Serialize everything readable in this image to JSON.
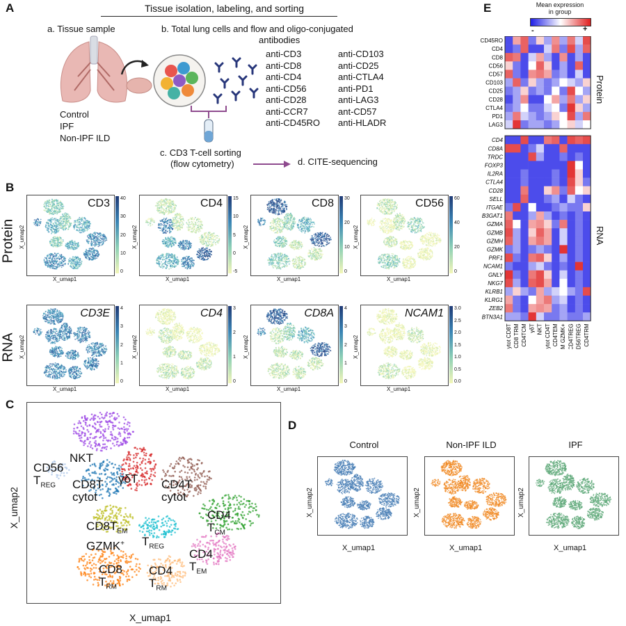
{
  "panel_a": {
    "letter": "A",
    "title": "Tissue isolation, labeling, and sorting",
    "step_a": "a. Tissue sample",
    "step_b_line1": "b.   Total lung cells and flow and oligo-conjugated",
    "step_b_line2": "antibodies",
    "groups": [
      "Control",
      "IPF",
      "Non-IPF ILD"
    ],
    "antibodies_left": [
      "anti-CD3",
      "anti-CD8",
      "anti-CD4",
      "anti-CD56",
      "anti-CD28",
      "anti-CCR7",
      "anti-CD45RO"
    ],
    "antibodies_right": [
      "anti-CD103",
      "anti-CD25",
      "anti-CTLA4",
      "anti-PD1",
      "anti-LAG3",
      "ant-CD57",
      "anti-HLADR"
    ],
    "step_c_line1": "c. CD3 T-cell sorting",
    "step_c_line2": "(flow cytometry)",
    "step_d": "d. CITE-sequencing"
  },
  "panel_b": {
    "letter": "B",
    "row_labels": [
      "Protein",
      "RNA"
    ],
    "x_label": "X_umap1",
    "y_label": "X_umap2",
    "protein": [
      {
        "marker": "CD3",
        "ticks": [
          "40",
          "30",
          "20",
          "10",
          "0"
        ]
      },
      {
        "marker": "CD4",
        "ticks": [
          "15",
          "10",
          "5",
          "0",
          "-5"
        ]
      },
      {
        "marker": "CD8",
        "ticks": [
          "30",
          "20",
          "10",
          "0"
        ]
      },
      {
        "marker": "CD56",
        "ticks": [
          "60",
          "40",
          "20",
          "0"
        ]
      }
    ],
    "rna": [
      {
        "marker": "CD3E",
        "ticks": [
          "4",
          "3",
          "2",
          "1",
          "0"
        ]
      },
      {
        "marker": "CD4",
        "ticks": [
          "3",
          "2",
          "1",
          "0"
        ]
      },
      {
        "marker": "CD8A",
        "ticks": [
          "4",
          "3",
          "2",
          "1",
          "0"
        ]
      },
      {
        "marker": "NCAM1",
        "ticks": [
          "3.0",
          "2.5",
          "2.0",
          "1.5",
          "1.0",
          "0.5",
          "0.0"
        ]
      }
    ]
  },
  "panel_c": {
    "letter": "C",
    "x_label": "X_umap1",
    "y_label": "X_umap2",
    "clusters": [
      {
        "l1": "NKT",
        "l2": "",
        "color": "#9b45e4"
      },
      {
        "l1": "CD56",
        "l2": "TREG",
        "color": "#aec7e8"
      },
      {
        "l1": "CD8T",
        "l2": "cytot",
        "color": "#1f77b4"
      },
      {
        "l1": "γδT",
        "l2": "",
        "color": "#d62728"
      },
      {
        "l1": "CD4T",
        "l2": "cytot",
        "color": "#8c564b"
      },
      {
        "l1": "CD8TEM",
        "l2": "GZMK+",
        "color": "#bcbd22"
      },
      {
        "l1": "TREG",
        "l2": "",
        "color": "#17becf"
      },
      {
        "l1": "CD4",
        "l2": "TCM",
        "color": "#2ca02c"
      },
      {
        "l1": "CD4",
        "l2": "TEM",
        "color": "#e377c2"
      },
      {
        "l1": "CD8",
        "l2": "TRM",
        "color": "#ff7f0e"
      },
      {
        "l1": "CD4",
        "l2": "TRM",
        "color": "#ffbb78"
      }
    ]
  },
  "panel_d": {
    "letter": "D",
    "x_label": "X_umap1",
    "y_label": "X_umap2",
    "groups": [
      {
        "name": "Control",
        "color": "#4a7fb5"
      },
      {
        "name": "Non-IPF ILD",
        "color": "#f08a24"
      },
      {
        "name": "IPF",
        "color": "#5ea878"
      }
    ]
  },
  "panel_e": {
    "letter": "E",
    "legend_title_line1": "Mean expression",
    "legend_title_line2": "in group",
    "legend_min": "-",
    "legend_max": "+",
    "section_protein": "Protein",
    "section_rna": "RNA",
    "protein_rows": [
      "CD45RO",
      "CD4",
      "CD8",
      "CD56",
      "CD57",
      "CD103",
      "CD25",
      "CD28",
      "CTLA4",
      "PD1",
      "LAG3"
    ],
    "rna_rows": [
      "CD4",
      "CD8A",
      "TRDC",
      "FOXP3",
      "IL2RA",
      "CTLA4",
      "CD28",
      "SELL",
      "ITGAE",
      "B3GAT1",
      "GZMA",
      "GZMB",
      "GZMH",
      "GZMK",
      "PRF1",
      "NCAM1",
      "GNLY",
      "NKG7",
      "KLRB1",
      "KLRG1",
      "ZEB2",
      "BTN3A1"
    ],
    "columns": [
      "Cytot CD8T",
      "CD8 TRM",
      "CD4TCM",
      "γδT",
      "NKT",
      "Cytot CD4T",
      "CD4TEM",
      "CD8 TEM GZMK+",
      "CD4TREG",
      "CD56TREG",
      "CD4TRM"
    ],
    "protein_values": [
      [
        0.1,
        0.7,
        0.85,
        0.2,
        0.6,
        0.3,
        0.75,
        0.3,
        0.8,
        0.4,
        0.9
      ],
      [
        0.1,
        0.2,
        0.85,
        0.1,
        0.1,
        0.4,
        0.8,
        0.2,
        0.9,
        0.3,
        0.85
      ],
      [
        0.85,
        0.8,
        0.1,
        0.4,
        0.7,
        0.3,
        0.1,
        0.75,
        0.1,
        0.3,
        0.1
      ],
      [
        0.6,
        0.2,
        0.1,
        0.5,
        0.85,
        0.6,
        0.1,
        0.3,
        0.1,
        0.85,
        0.1
      ],
      [
        0.85,
        0.2,
        0.1,
        0.75,
        0.8,
        0.7,
        0.2,
        0.3,
        0.1,
        0.4,
        0.1
      ],
      [
        0.3,
        0.85,
        0.2,
        0.6,
        0.3,
        0.2,
        0.3,
        0.5,
        0.4,
        0.3,
        0.6
      ],
      [
        0.2,
        0.3,
        0.6,
        0.2,
        0.3,
        0.2,
        0.5,
        0.2,
        0.9,
        0.5,
        0.3
      ],
      [
        0.1,
        0.3,
        0.75,
        0.1,
        0.1,
        0.5,
        0.7,
        0.3,
        0.8,
        0.3,
        0.6
      ],
      [
        0.2,
        0.3,
        0.5,
        0.2,
        0.2,
        0.4,
        0.5,
        0.2,
        0.95,
        0.6,
        0.3
      ],
      [
        0.3,
        0.8,
        0.4,
        0.3,
        0.2,
        0.3,
        0.6,
        0.5,
        0.9,
        0.3,
        0.8
      ],
      [
        0.4,
        0.95,
        0.2,
        0.3,
        0.3,
        0.2,
        0.3,
        0.5,
        0.6,
        0.4,
        0.5
      ]
    ],
    "rna_values": [
      [
        0.1,
        0.1,
        0.9,
        0.1,
        0.1,
        0.8,
        0.85,
        0.1,
        0.9,
        0.85,
        0.9
      ],
      [
        0.9,
        0.9,
        0.1,
        0.2,
        0.4,
        0.1,
        0.1,
        0.85,
        0.1,
        0.1,
        0.1
      ],
      [
        0.1,
        0.1,
        0.1,
        0.9,
        0.3,
        0.1,
        0.1,
        0.2,
        0.1,
        0.2,
        0.1
      ],
      [
        0.1,
        0.1,
        0.1,
        0.1,
        0.1,
        0.1,
        0.1,
        0.1,
        0.95,
        0.5,
        0.1
      ],
      [
        0.1,
        0.1,
        0.2,
        0.1,
        0.1,
        0.1,
        0.2,
        0.1,
        0.95,
        0.6,
        0.1
      ],
      [
        0.1,
        0.1,
        0.2,
        0.1,
        0.1,
        0.1,
        0.2,
        0.1,
        0.9,
        0.6,
        0.2
      ],
      [
        0.1,
        0.1,
        0.8,
        0.1,
        0.1,
        0.6,
        0.75,
        0.2,
        0.85,
        0.5,
        0.6
      ],
      [
        0.1,
        0.1,
        0.85,
        0.1,
        0.1,
        0.2,
        0.3,
        0.1,
        0.4,
        0.2,
        0.1
      ],
      [
        0.2,
        0.9,
        0.1,
        0.5,
        0.1,
        0.1,
        0.2,
        0.3,
        0.2,
        0.2,
        0.6
      ],
      [
        0.8,
        0.1,
        0.1,
        0.3,
        0.7,
        0.3,
        0.1,
        0.2,
        0.1,
        0.2,
        0.1
      ],
      [
        0.85,
        0.5,
        0.1,
        0.7,
        0.75,
        0.6,
        0.2,
        0.8,
        0.1,
        0.2,
        0.1
      ],
      [
        0.9,
        0.3,
        0.1,
        0.6,
        0.85,
        0.7,
        0.1,
        0.4,
        0.1,
        0.2,
        0.1
      ],
      [
        0.85,
        0.3,
        0.1,
        0.7,
        0.8,
        0.7,
        0.1,
        0.4,
        0.1,
        0.2,
        0.1
      ],
      [
        0.2,
        0.3,
        0.1,
        0.2,
        0.3,
        0.2,
        0.1,
        0.95,
        0.1,
        0.2,
        0.1
      ],
      [
        0.9,
        0.2,
        0.1,
        0.8,
        0.85,
        0.6,
        0.1,
        0.3,
        0.1,
        0.2,
        0.1
      ],
      [
        0.2,
        0.1,
        0.1,
        0.3,
        0.4,
        0.2,
        0.1,
        0.2,
        0.1,
        0.95,
        0.1
      ],
      [
        0.95,
        0.2,
        0.1,
        0.8,
        0.9,
        0.6,
        0.1,
        0.4,
        0.1,
        0.2,
        0.1
      ],
      [
        0.9,
        0.3,
        0.1,
        0.85,
        0.9,
        0.7,
        0.1,
        0.5,
        0.1,
        0.2,
        0.1
      ],
      [
        0.3,
        0.6,
        0.3,
        0.2,
        0.7,
        0.3,
        0.4,
        0.5,
        0.3,
        0.2,
        0.9
      ],
      [
        0.7,
        0.2,
        0.1,
        0.5,
        0.7,
        0.8,
        0.3,
        0.4,
        0.1,
        0.2,
        0.1
      ],
      [
        0.8,
        0.2,
        0.1,
        0.7,
        0.75,
        0.7,
        0.2,
        0.3,
        0.1,
        0.2,
        0.1
      ],
      [
        0.3,
        0.3,
        0.2,
        0.95,
        0.4,
        0.2,
        0.2,
        0.3,
        0.2,
        0.2,
        0.3
      ]
    ]
  }
}
